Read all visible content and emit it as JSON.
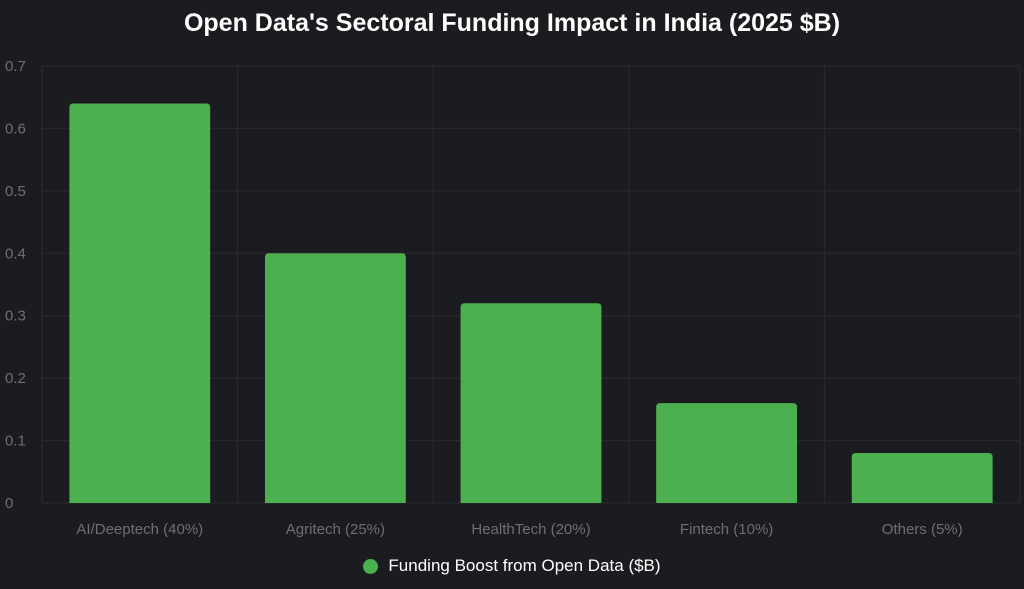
{
  "chart_data": {
    "type": "bar",
    "title": "Open Data's Sectoral Funding Impact in India (2025 $B)",
    "categories": [
      "AI/Deeptech (40%)",
      "Agritech (25%)",
      "HealthTech (20%)",
      "Fintech (10%)",
      "Others (5%)"
    ],
    "series": [
      {
        "name": "Funding Boost from Open Data ($B)",
        "values": [
          0.64,
          0.4,
          0.32,
          0.16,
          0.08
        ],
        "color": "#4caf50"
      }
    ],
    "ylim": [
      0,
      0.7
    ],
    "yticks": [
      "0",
      "0.1",
      "0.2",
      "0.3",
      "0.4",
      "0.5",
      "0.6",
      "0.7"
    ],
    "grid": true,
    "legend_position": "bottom",
    "colors": {
      "background": "#1b1c1f",
      "grid": "#2a2b2e",
      "tick_label": "#6e6f73",
      "title": "#ffffff"
    }
  }
}
